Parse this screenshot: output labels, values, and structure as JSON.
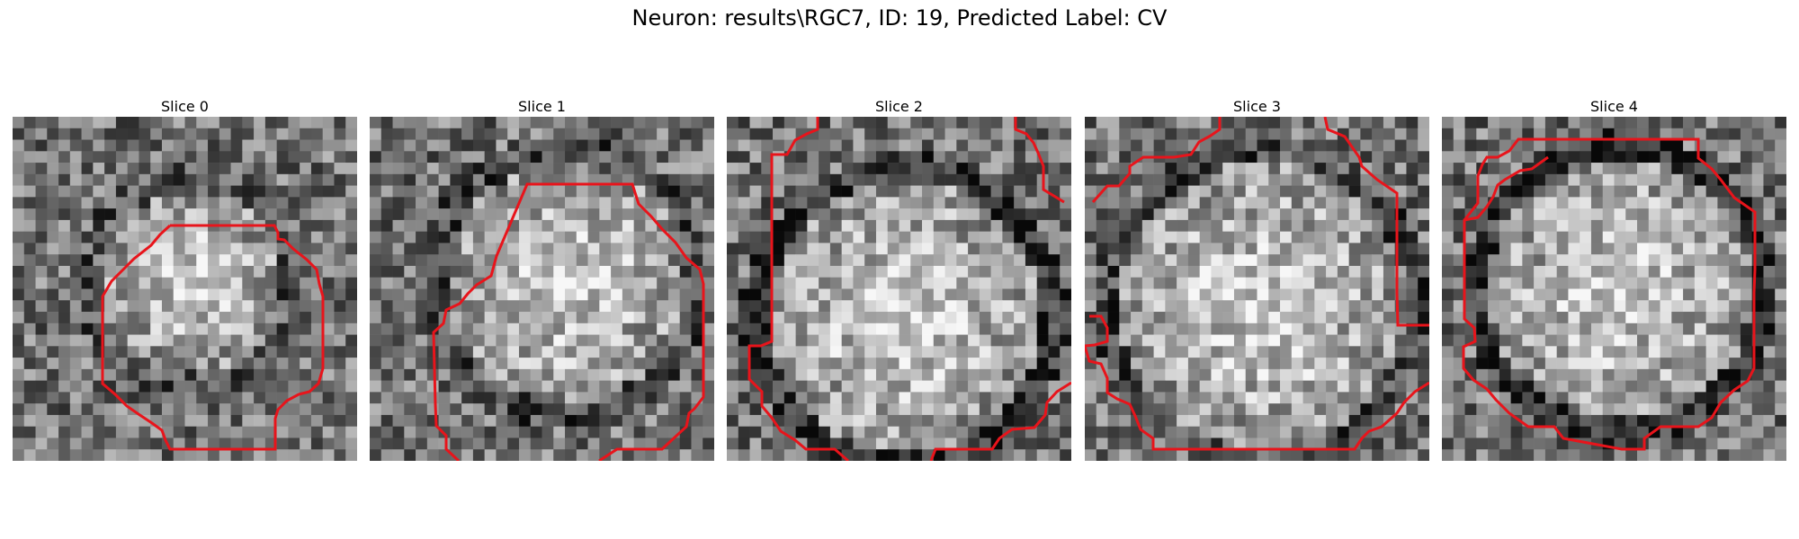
{
  "figure": {
    "suptitle": "Neuron: results\\RGC7, ID: 19, Predicted Label: CV"
  },
  "panels": [
    {
      "title": "Slice 0"
    },
    {
      "title": "Slice 1"
    },
    {
      "title": "Slice 2"
    },
    {
      "title": "Slice 3"
    },
    {
      "title": "Slice 4"
    }
  ],
  "colors": {
    "contour": "#e8141b",
    "background": "#ffffff"
  }
}
